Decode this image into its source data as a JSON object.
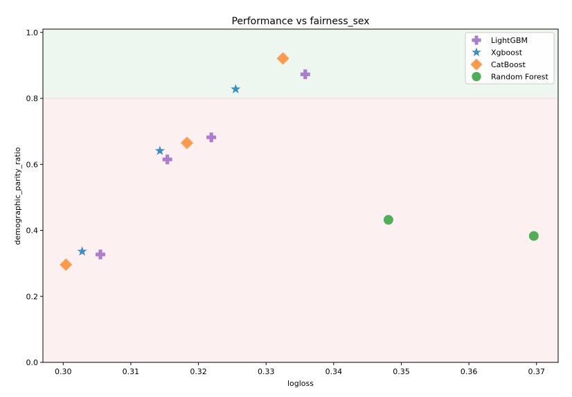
{
  "chart_data": {
    "type": "scatter",
    "title": "Performance vs fairness_sex",
    "xlabel": "logloss",
    "ylabel": "demographic_parity_ratio",
    "xlim": [
      0.297,
      0.3732
    ],
    "ylim": [
      0.0,
      1.01
    ],
    "xticks": [
      0.3,
      0.31,
      0.32,
      0.33,
      0.34,
      0.35,
      0.36,
      0.37
    ],
    "xtick_labels": [
      "0.30",
      "0.31",
      "0.32",
      "0.33",
      "0.34",
      "0.35",
      "0.36",
      "0.37"
    ],
    "yticks": [
      0.0,
      0.2,
      0.4,
      0.6,
      0.8,
      1.0
    ],
    "ytick_labels": [
      "0.0",
      "0.2",
      "0.4",
      "0.6",
      "0.8",
      "1.0"
    ],
    "grid": false,
    "legend_position": "top-right",
    "bands": [
      {
        "from": 0.8,
        "to": 1.01,
        "color": "#eef7ef"
      },
      {
        "from": 0.0,
        "to": 0.8,
        "color": "#fdf0f0"
      }
    ],
    "threshold_line": {
      "y": 0.8,
      "color": "#f2d6d6"
    },
    "series": [
      {
        "name": "LightGBM",
        "marker": "plus",
        "color": "#a97fcb",
        "points": [
          [
            0.3055,
            0.327
          ],
          [
            0.3154,
            0.615
          ],
          [
            0.3219,
            0.682
          ],
          [
            0.3358,
            0.873
          ]
        ]
      },
      {
        "name": "Xgboost",
        "marker": "star",
        "color": "#3a8fc4",
        "points": [
          [
            0.3028,
            0.336
          ],
          [
            0.3143,
            0.641
          ],
          [
            0.3255,
            0.828
          ]
        ]
      },
      {
        "name": "CatBoost",
        "marker": "diamond",
        "color": "#fd9a4c",
        "points": [
          [
            0.3004,
            0.296
          ],
          [
            0.3183,
            0.665
          ],
          [
            0.3325,
            0.921
          ]
        ]
      },
      {
        "name": "Random Forest",
        "marker": "circle",
        "color": "#4fae56",
        "points": [
          [
            0.3481,
            0.432
          ],
          [
            0.3696,
            0.383
          ]
        ]
      }
    ]
  }
}
